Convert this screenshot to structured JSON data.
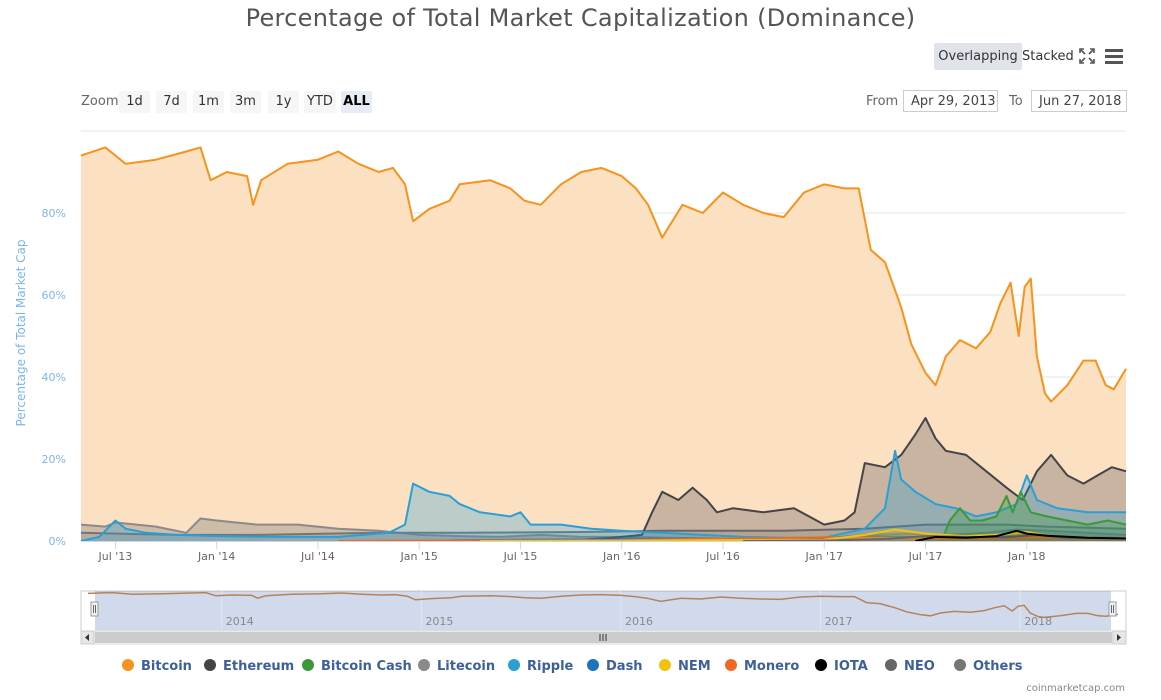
{
  "title": "Percentage of Total Market Capitalization (Dominance)",
  "modes": {
    "overlapping": "Overlapping",
    "stacked": "Stacked"
  },
  "icons": {
    "fullscreen": "fullscreen-icon",
    "menu": "menu-icon"
  },
  "zoom": {
    "label": "Zoom",
    "buttons": [
      "1d",
      "7d",
      "1m",
      "3m",
      "1y",
      "YTD",
      "ALL"
    ],
    "active": "ALL"
  },
  "range": {
    "from_label": "From",
    "from_value": "Apr 29, 2013",
    "to_label": "To",
    "to_value": "Jun 27, 2018"
  },
  "credits": "coinmarketcap.com",
  "colors": {
    "bitcoin": "#f7931a",
    "ethereum": "#434348",
    "bitcoin_cash": "#3a9a3a",
    "litecoin": "#8a8a8a",
    "ripple": "#2a9fd6",
    "dash": "#1c75bc",
    "nem": "#f4c20d",
    "monero": "#f26822",
    "iota": "#000000",
    "neo": "#666666",
    "others": "#757575",
    "axis_title": "#7cb5ec"
  },
  "chart_data": {
    "type": "area",
    "title": "Percentage of Total Market Capitalization (Dominance)",
    "ylabel": "Percentage of Total Market Cap",
    "ylim": [
      0,
      100
    ],
    "yticks": [
      "0%",
      "20%",
      "40%",
      "60%",
      "80%"
    ],
    "ytick_values": [
      0,
      20,
      40,
      60,
      80
    ],
    "xlim": [
      2013.33,
      2018.49
    ],
    "xticks": [
      {
        "label": "Jul '13",
        "x": 2013.5
      },
      {
        "label": "Jan '14",
        "x": 2014.0
      },
      {
        "label": "Jul '14",
        "x": 2014.5
      },
      {
        "label": "Jan '15",
        "x": 2015.0
      },
      {
        "label": "Jul '15",
        "x": 2015.5
      },
      {
        "label": "Jan '16",
        "x": 2016.0
      },
      {
        "label": "Jul '16",
        "x": 2016.5
      },
      {
        "label": "Jan '17",
        "x": 2017.0
      },
      {
        "label": "Jul '17",
        "x": 2017.5
      },
      {
        "label": "Jan '18",
        "x": 2018.0
      }
    ],
    "navigator_ticks": [
      {
        "label": "2014",
        "x": 2014.0
      },
      {
        "label": "2015",
        "x": 2015.0
      },
      {
        "label": "2016",
        "x": 2016.0
      },
      {
        "label": "2017",
        "x": 2017.0
      },
      {
        "label": "2018",
        "x": 2018.0
      }
    ],
    "series": [
      {
        "key": "bitcoin",
        "name": "Bitcoin",
        "color": "#f7931a",
        "fill": "#fbe0c2",
        "points": [
          [
            2013.33,
            94
          ],
          [
            2013.45,
            96
          ],
          [
            2013.55,
            92
          ],
          [
            2013.7,
            93
          ],
          [
            2013.85,
            95
          ],
          [
            2013.92,
            96
          ],
          [
            2013.97,
            88
          ],
          [
            2014.05,
            90
          ],
          [
            2014.15,
            89
          ],
          [
            2014.18,
            82
          ],
          [
            2014.22,
            88
          ],
          [
            2014.35,
            92
          ],
          [
            2014.5,
            93
          ],
          [
            2014.6,
            95
          ],
          [
            2014.7,
            92
          ],
          [
            2014.8,
            90
          ],
          [
            2014.87,
            91
          ],
          [
            2014.93,
            87
          ],
          [
            2014.97,
            78
          ],
          [
            2015.05,
            81
          ],
          [
            2015.15,
            83
          ],
          [
            2015.2,
            87
          ],
          [
            2015.35,
            88
          ],
          [
            2015.45,
            86
          ],
          [
            2015.52,
            83
          ],
          [
            2015.6,
            82
          ],
          [
            2015.7,
            87
          ],
          [
            2015.8,
            90
          ],
          [
            2015.9,
            91
          ],
          [
            2016.0,
            89
          ],
          [
            2016.07,
            86
          ],
          [
            2016.13,
            82
          ],
          [
            2016.2,
            74
          ],
          [
            2016.3,
            82
          ],
          [
            2016.4,
            80
          ],
          [
            2016.5,
            85
          ],
          [
            2016.6,
            82
          ],
          [
            2016.7,
            80
          ],
          [
            2016.8,
            79
          ],
          [
            2016.9,
            85
          ],
          [
            2017.0,
            87
          ],
          [
            2017.1,
            86
          ],
          [
            2017.17,
            86
          ],
          [
            2017.23,
            71
          ],
          [
            2017.3,
            68
          ],
          [
            2017.38,
            57
          ],
          [
            2017.43,
            48
          ],
          [
            2017.5,
            41
          ],
          [
            2017.55,
            38
          ],
          [
            2017.6,
            45
          ],
          [
            2017.67,
            49
          ],
          [
            2017.75,
            47
          ],
          [
            2017.82,
            51
          ],
          [
            2017.87,
            58
          ],
          [
            2017.92,
            63
          ],
          [
            2017.96,
            50
          ],
          [
            2017.99,
            62
          ],
          [
            2018.02,
            64
          ],
          [
            2018.05,
            45
          ],
          [
            2018.09,
            36
          ],
          [
            2018.12,
            34
          ],
          [
            2018.2,
            38
          ],
          [
            2018.28,
            44
          ],
          [
            2018.34,
            44
          ],
          [
            2018.39,
            38
          ],
          [
            2018.43,
            37
          ],
          [
            2018.49,
            42
          ]
        ]
      },
      {
        "key": "ethereum",
        "name": "Ethereum",
        "color": "#434348",
        "fill": "rgba(67,67,72,0.28)",
        "points": [
          [
            2015.6,
            0
          ],
          [
            2015.8,
            0.3
          ],
          [
            2015.95,
            0.8
          ],
          [
            2016.1,
            1.5
          ],
          [
            2016.15,
            7
          ],
          [
            2016.2,
            12
          ],
          [
            2016.28,
            10
          ],
          [
            2016.35,
            13
          ],
          [
            2016.42,
            10
          ],
          [
            2016.47,
            7
          ],
          [
            2016.55,
            8
          ],
          [
            2016.7,
            7
          ],
          [
            2016.85,
            8
          ],
          [
            2017.0,
            4
          ],
          [
            2017.1,
            5
          ],
          [
            2017.15,
            7
          ],
          [
            2017.2,
            19
          ],
          [
            2017.3,
            18
          ],
          [
            2017.38,
            21
          ],
          [
            2017.45,
            26
          ],
          [
            2017.5,
            30
          ],
          [
            2017.55,
            25
          ],
          [
            2017.6,
            22
          ],
          [
            2017.7,
            21
          ],
          [
            2017.8,
            17
          ],
          [
            2017.9,
            13
          ],
          [
            2017.98,
            10
          ],
          [
            2018.05,
            17
          ],
          [
            2018.12,
            21
          ],
          [
            2018.2,
            16
          ],
          [
            2018.28,
            14
          ],
          [
            2018.35,
            16
          ],
          [
            2018.42,
            18
          ],
          [
            2018.49,
            17
          ]
        ]
      },
      {
        "key": "bitcoin_cash",
        "name": "Bitcoin Cash",
        "color": "#3a9a3a",
        "fill": "rgba(58,154,58,0.30)",
        "points": [
          [
            2017.58,
            0
          ],
          [
            2017.62,
            5
          ],
          [
            2017.67,
            8
          ],
          [
            2017.72,
            5
          ],
          [
            2017.78,
            5
          ],
          [
            2017.85,
            6
          ],
          [
            2017.9,
            11
          ],
          [
            2017.93,
            7
          ],
          [
            2017.97,
            12
          ],
          [
            2018.02,
            7
          ],
          [
            2018.1,
            6
          ],
          [
            2018.2,
            5
          ],
          [
            2018.3,
            4
          ],
          [
            2018.4,
            5
          ],
          [
            2018.49,
            4
          ]
        ]
      },
      {
        "key": "litecoin",
        "name": "Litecoin",
        "color": "#8a8a8a",
        "fill": "rgba(120,120,120,0.35)",
        "points": [
          [
            2013.33,
            4
          ],
          [
            2013.45,
            3.5
          ],
          [
            2013.5,
            4.5
          ],
          [
            2013.7,
            3.5
          ],
          [
            2013.85,
            2
          ],
          [
            2013.92,
            5.5
          ],
          [
            2014.0,
            5
          ],
          [
            2014.2,
            4
          ],
          [
            2014.4,
            4
          ],
          [
            2014.6,
            3
          ],
          [
            2014.8,
            2.5
          ],
          [
            2015.0,
            1.5
          ],
          [
            2015.2,
            1.2
          ],
          [
            2015.4,
            1
          ],
          [
            2015.6,
            1.5
          ],
          [
            2015.8,
            1
          ],
          [
            2016.0,
            1
          ],
          [
            2016.2,
            0.8
          ],
          [
            2016.5,
            0.6
          ],
          [
            2016.8,
            0.5
          ],
          [
            2017.0,
            0.6
          ],
          [
            2017.2,
            1.5
          ],
          [
            2017.4,
            1.8
          ],
          [
            2017.6,
            1.5
          ],
          [
            2017.8,
            2
          ],
          [
            2017.95,
            2.8
          ],
          [
            2018.1,
            2.5
          ],
          [
            2018.3,
            2
          ],
          [
            2018.49,
            1.5
          ]
        ]
      },
      {
        "key": "ripple",
        "name": "Ripple",
        "color": "#2a9fd6",
        "fill": "rgba(42,159,214,0.30)",
        "points": [
          [
            2013.33,
            0
          ],
          [
            2013.42,
            1
          ],
          [
            2013.5,
            5
          ],
          [
            2013.55,
            3
          ],
          [
            2013.65,
            2
          ],
          [
            2013.8,
            1.5
          ],
          [
            2014.0,
            1.2
          ],
          [
            2014.3,
            1
          ],
          [
            2014.6,
            1
          ],
          [
            2014.85,
            2
          ],
          [
            2014.93,
            4
          ],
          [
            2014.97,
            14
          ],
          [
            2015.05,
            12
          ],
          [
            2015.15,
            11
          ],
          [
            2015.2,
            9
          ],
          [
            2015.3,
            7
          ],
          [
            2015.45,
            6
          ],
          [
            2015.5,
            7
          ],
          [
            2015.55,
            4
          ],
          [
            2015.7,
            4
          ],
          [
            2015.85,
            3
          ],
          [
            2016.0,
            2.5
          ],
          [
            2016.2,
            2
          ],
          [
            2016.4,
            1.5
          ],
          [
            2016.6,
            1
          ],
          [
            2016.8,
            0.8
          ],
          [
            2017.0,
            0.8
          ],
          [
            2017.2,
            3
          ],
          [
            2017.3,
            8
          ],
          [
            2017.35,
            22
          ],
          [
            2017.38,
            15
          ],
          [
            2017.45,
            12
          ],
          [
            2017.55,
            9
          ],
          [
            2017.65,
            8
          ],
          [
            2017.75,
            6
          ],
          [
            2017.85,
            7
          ],
          [
            2017.95,
            9
          ],
          [
            2018.0,
            16
          ],
          [
            2018.05,
            10
          ],
          [
            2018.15,
            8
          ],
          [
            2018.3,
            7
          ],
          [
            2018.49,
            7
          ]
        ]
      },
      {
        "key": "dash",
        "name": "Dash",
        "color": "#1c75bc",
        "fill": "rgba(28,117,188,0.25)",
        "points": [
          [
            2015.0,
            0
          ],
          [
            2015.2,
            0.2
          ],
          [
            2015.5,
            0.3
          ],
          [
            2016.0,
            0.4
          ],
          [
            2016.5,
            0.5
          ],
          [
            2017.0,
            0.7
          ],
          [
            2017.2,
            1.2
          ],
          [
            2017.4,
            1.0
          ],
          [
            2017.6,
            0.9
          ],
          [
            2017.8,
            1.1
          ],
          [
            2018.0,
            1.2
          ],
          [
            2018.2,
            0.9
          ],
          [
            2018.49,
            0.7
          ]
        ]
      },
      {
        "key": "nem",
        "name": "NEM",
        "color": "#f4c20d",
        "fill": "rgba(244,194,13,0.30)",
        "points": [
          [
            2015.3,
            0
          ],
          [
            2016.0,
            0.1
          ],
          [
            2017.0,
            0.3
          ],
          [
            2017.2,
            1.5
          ],
          [
            2017.35,
            2.8
          ],
          [
            2017.5,
            1.8
          ],
          [
            2017.7,
            1.2
          ],
          [
            2017.9,
            1.6
          ],
          [
            2018.0,
            2.2
          ],
          [
            2018.1,
            1.3
          ],
          [
            2018.3,
            0.8
          ],
          [
            2018.49,
            0.5
          ]
        ]
      },
      {
        "key": "monero",
        "name": "Monero",
        "color": "#f26822",
        "fill": "rgba(242,104,34,0.25)",
        "points": [
          [
            2014.6,
            0
          ],
          [
            2015.0,
            0.1
          ],
          [
            2016.0,
            0.2
          ],
          [
            2016.5,
            0.6
          ],
          [
            2016.8,
            0.7
          ],
          [
            2017.0,
            0.9
          ],
          [
            2017.3,
            0.7
          ],
          [
            2017.6,
            0.6
          ],
          [
            2017.9,
            0.8
          ],
          [
            2018.1,
            0.9
          ],
          [
            2018.3,
            0.8
          ],
          [
            2018.49,
            0.7
          ]
        ]
      },
      {
        "key": "iota",
        "name": "IOTA",
        "color": "#000000",
        "fill": "rgba(0,0,0,0.12)",
        "points": [
          [
            2017.45,
            0
          ],
          [
            2017.55,
            1
          ],
          [
            2017.7,
            0.8
          ],
          [
            2017.85,
            1.2
          ],
          [
            2017.95,
            2.5
          ],
          [
            2018.0,
            1.8
          ],
          [
            2018.1,
            1.3
          ],
          [
            2018.3,
            0.8
          ],
          [
            2018.49,
            0.6
          ]
        ]
      },
      {
        "key": "neo",
        "name": "NEO",
        "color": "#666666",
        "fill": "rgba(102,102,102,0.2)",
        "points": [
          [
            2016.6,
            0
          ],
          [
            2017.0,
            0.1
          ],
          [
            2017.3,
            0.5
          ],
          [
            2017.5,
            1.2
          ],
          [
            2017.7,
            1.0
          ],
          [
            2017.9,
            0.9
          ],
          [
            2018.05,
            1.5
          ],
          [
            2018.2,
            0.8
          ],
          [
            2018.49,
            0.6
          ]
        ]
      },
      {
        "key": "others",
        "name": "Others",
        "color": "#757575",
        "fill": "rgba(117,117,117,0.2)",
        "points": [
          [
            2013.33,
            2
          ],
          [
            2013.8,
            1.5
          ],
          [
            2014.2,
            1.5
          ],
          [
            2014.8,
            2
          ],
          [
            2015.2,
            2
          ],
          [
            2015.8,
            2.2
          ],
          [
            2016.2,
            2.5
          ],
          [
            2016.8,
            2.5
          ],
          [
            2017.2,
            3
          ],
          [
            2017.5,
            4
          ],
          [
            2017.9,
            4
          ],
          [
            2018.1,
            3.5
          ],
          [
            2018.49,
            3
          ]
        ]
      }
    ],
    "legend": [
      "Bitcoin",
      "Ethereum",
      "Bitcoin Cash",
      "Litecoin",
      "Ripple",
      "Dash",
      "NEM",
      "Monero",
      "IOTA",
      "NEO",
      "Others"
    ]
  }
}
